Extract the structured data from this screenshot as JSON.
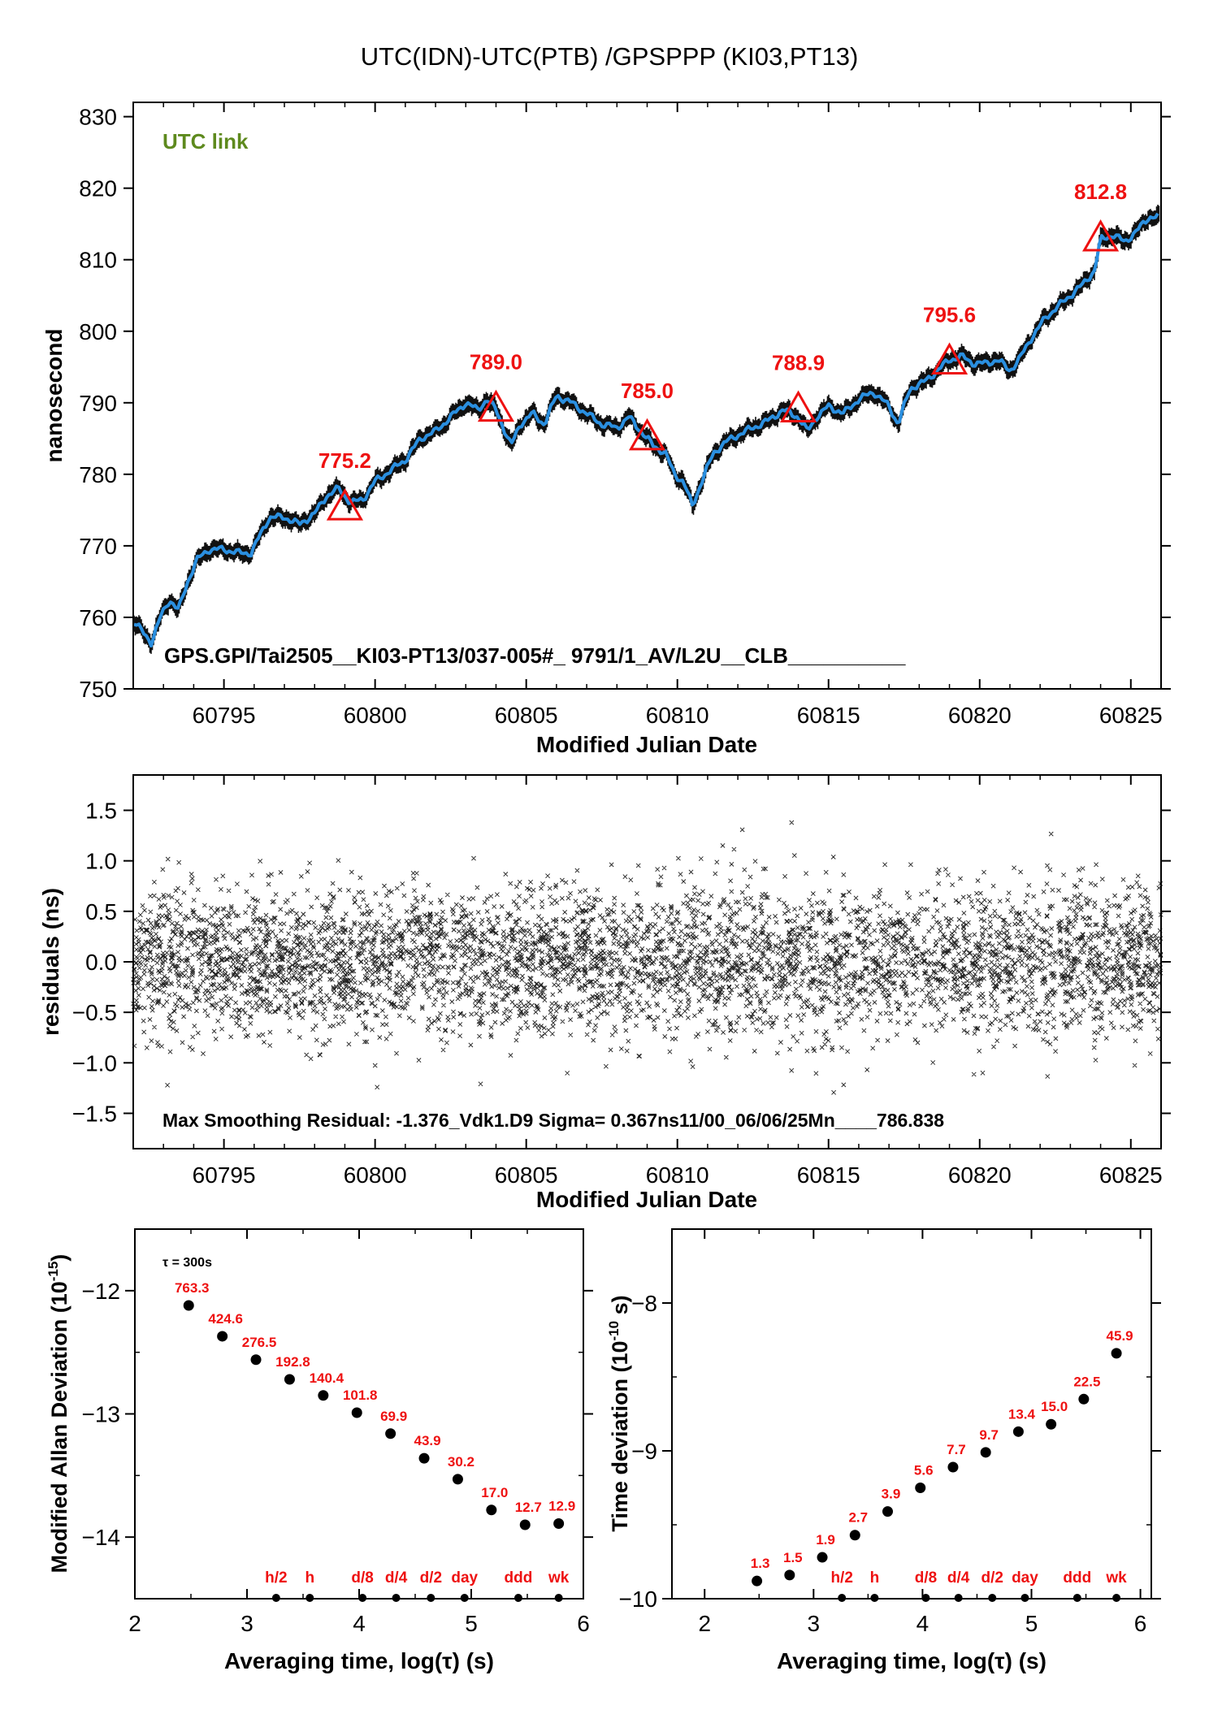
{
  "page": {
    "title": "UTC(IDN)-UTC(PTB)  /GPSPPP  (KI03,PT13)"
  },
  "colors": {
    "red": "#ee1111",
    "blue": "#2a8fe0",
    "green": "#5e8a1e",
    "black": "#000000"
  },
  "chart_data": [
    {
      "type": "line",
      "name": "time-series",
      "xlabel": "Modified Julian Date",
      "ylabel": "nanosecond",
      "xlim": [
        60792,
        60826
      ],
      "ylim": [
        750,
        832
      ],
      "xticks": [
        60795,
        60800,
        60805,
        60810,
        60815,
        60820,
        60825
      ],
      "yticks": [
        750,
        760,
        770,
        780,
        790,
        800,
        810,
        820,
        830
      ],
      "legend": "UTC link",
      "footer": "GPS.GPI/Tai2505__KI03-PT13/037-005#_  9791/1_AV/L2U__CLB__________",
      "curve": [
        [
          60792.0,
          759.5
        ],
        [
          60792.3,
          758.0
        ],
        [
          60792.6,
          756.5
        ],
        [
          60792.9,
          760.0
        ],
        [
          60793.2,
          762.5
        ],
        [
          60793.5,
          761.0
        ],
        [
          60793.8,
          765.0
        ],
        [
          60794.1,
          768.0
        ],
        [
          60794.5,
          769.5
        ],
        [
          60795.0,
          769.5
        ],
        [
          60795.5,
          769.0
        ],
        [
          60795.9,
          769.0
        ],
        [
          60796.2,
          771.5
        ],
        [
          60796.5,
          774.0
        ],
        [
          60797.0,
          774.0
        ],
        [
          60797.5,
          773.0
        ],
        [
          60798.0,
          774.5
        ],
        [
          60798.4,
          777.0
        ],
        [
          60798.8,
          778.0
        ],
        [
          60799.2,
          776.0
        ],
        [
          60799.6,
          776.5
        ],
        [
          60800.0,
          779.0
        ],
        [
          60800.5,
          780.5
        ],
        [
          60801.0,
          782.0
        ],
        [
          60801.5,
          785.0
        ],
        [
          60802.0,
          786.0
        ],
        [
          60802.5,
          788.0
        ],
        [
          60803.0,
          790.0
        ],
        [
          60803.4,
          789.0
        ],
        [
          60803.7,
          790.5
        ],
        [
          60804.0,
          789.0
        ],
        [
          60804.3,
          786.0
        ],
        [
          60804.5,
          784.0
        ],
        [
          60804.8,
          787.0
        ],
        [
          60805.2,
          788.5
        ],
        [
          60805.6,
          787.0
        ],
        [
          60806.0,
          791.0
        ],
        [
          60806.5,
          790.0
        ],
        [
          60807.0,
          788.5
        ],
        [
          60807.5,
          787.0
        ],
        [
          60808.0,
          786.5
        ],
        [
          60808.4,
          788.0
        ],
        [
          60808.8,
          786.0
        ],
        [
          60809.2,
          784.0
        ],
        [
          60809.6,
          783.0
        ],
        [
          60809.9,
          780.0
        ],
        [
          60810.2,
          779.0
        ],
        [
          60810.5,
          775.5
        ],
        [
          60810.8,
          779.0
        ],
        [
          60811.2,
          783.0
        ],
        [
          60811.6,
          784.5
        ],
        [
          60812.0,
          785.5
        ],
        [
          60812.5,
          786.5
        ],
        [
          60813.0,
          787.5
        ],
        [
          60813.5,
          789.0
        ],
        [
          60814.0,
          788.0
        ],
        [
          60814.3,
          786.0
        ],
        [
          60814.6,
          788.0
        ],
        [
          60815.0,
          789.5
        ],
        [
          60815.5,
          788.5
        ],
        [
          60816.0,
          790.5
        ],
        [
          60816.5,
          791.5
        ],
        [
          60817.0,
          789.5
        ],
        [
          60817.3,
          787.0
        ],
        [
          60817.7,
          792.0
        ],
        [
          60818.2,
          793.0
        ],
        [
          60818.6,
          794.5
        ],
        [
          60819.0,
          796.0
        ],
        [
          60819.4,
          796.5
        ],
        [
          60819.8,
          795.5
        ],
        [
          60820.2,
          795.5
        ],
        [
          60820.6,
          796.0
        ],
        [
          60821.0,
          794.5
        ],
        [
          60821.3,
          796.0
        ],
        [
          60821.7,
          799.0
        ],
        [
          60822.2,
          802.0
        ],
        [
          60822.6,
          803.5
        ],
        [
          60823.0,
          805.0
        ],
        [
          60823.4,
          806.5
        ],
        [
          60823.8,
          808.5
        ],
        [
          60824.0,
          812.8
        ],
        [
          60824.4,
          813.5
        ],
        [
          60824.8,
          812.5
        ],
        [
          60825.2,
          814.0
        ],
        [
          60825.6,
          816.0
        ],
        [
          60826.0,
          816.0
        ]
      ],
      "markers": [
        {
          "x": 60799.0,
          "y": 775.2,
          "label": "775.2"
        },
        {
          "x": 60804.0,
          "y": 789.0,
          "label": "789.0"
        },
        {
          "x": 60809.0,
          "y": 785.0,
          "label": "785.0"
        },
        {
          "x": 60814.0,
          "y": 788.9,
          "label": "788.9"
        },
        {
          "x": 60819.0,
          "y": 795.6,
          "label": "795.6"
        },
        {
          "x": 60824.0,
          "y": 812.8,
          "label": "812.8"
        }
      ]
    },
    {
      "type": "scatter",
      "name": "residuals",
      "xlabel": "Modified Julian Date",
      "ylabel": "residuals (ns)",
      "xlim": [
        60792,
        60826
      ],
      "ylim": [
        -1.85,
        1.85
      ],
      "xticks": [
        60795,
        60800,
        60805,
        60810,
        60815,
        60820,
        60825
      ],
      "yticks": [
        "1.5",
        "1.0",
        "0.5",
        "0.0",
        "−0.5",
        "−1.0",
        "−1.5"
      ],
      "yticks_values": [
        1.5,
        1.0,
        0.5,
        0.0,
        -0.5,
        -1.0,
        -1.5
      ],
      "sigma_ns": 0.367,
      "footer": "Max Smoothing Residual: -1.376_Vdk1.D9  Sigma= 0.367ns11/00_06/06/25Mn____786.838"
    },
    {
      "type": "scatter",
      "name": "modified-allan-deviation",
      "xlabel": "Averaging time, log(τ) (s)",
      "ylabel": "Modified Allan Deviation (10⁻¹⁵)",
      "ylabel_main": "Modified Allan Deviation (10",
      "ylabel_exp": "-15",
      "ylabel_end": ")",
      "xlim": [
        2,
        6
      ],
      "ylim": [
        -14.5,
        -11.5
      ],
      "xticks": [
        2,
        3,
        4,
        5,
        6
      ],
      "yticks": [
        -12,
        -13,
        -14
      ],
      "note": "τ = 300s",
      "points": [
        {
          "x": 2.48,
          "y": -12.12,
          "label": "763.3"
        },
        {
          "x": 2.78,
          "y": -12.37,
          "label": "424.6"
        },
        {
          "x": 3.08,
          "y": -12.56,
          "label": "276.5"
        },
        {
          "x": 3.38,
          "y": -12.72,
          "label": "192.8"
        },
        {
          "x": 3.68,
          "y": -12.85,
          "label": "140.4"
        },
        {
          "x": 3.98,
          "y": -12.99,
          "label": "101.8"
        },
        {
          "x": 4.28,
          "y": -13.16,
          "label": "69.9"
        },
        {
          "x": 4.58,
          "y": -13.36,
          "label": "43.9"
        },
        {
          "x": 4.88,
          "y": -13.53,
          "label": "30.2"
        },
        {
          "x": 5.18,
          "y": -13.78,
          "label": "17.0"
        },
        {
          "x": 5.48,
          "y": -13.9,
          "label": "12.7"
        },
        {
          "x": 5.78,
          "y": -13.89,
          "label": "12.9"
        }
      ],
      "ticks_marks": [
        {
          "x": 3.26,
          "label": "h/2"
        },
        {
          "x": 3.56,
          "label": "h"
        },
        {
          "x": 4.03,
          "label": "d/8"
        },
        {
          "x": 4.33,
          "label": "d/4"
        },
        {
          "x": 4.64,
          "label": "d/2"
        },
        {
          "x": 4.94,
          "label": "day"
        },
        {
          "x": 5.42,
          "label": "ddd"
        },
        {
          "x": 5.78,
          "label": "wk"
        }
      ]
    },
    {
      "type": "scatter",
      "name": "time-deviation",
      "xlabel": "Averaging time, log(τ) (s)",
      "ylabel": "Time deviation (10⁻¹⁰ s)",
      "ylabel_main": "Time deviation (10",
      "ylabel_exp": "-10",
      "ylabel_end": " s)",
      "xlim": [
        1.7,
        6.1
      ],
      "ylim": [
        -10,
        -7.5
      ],
      "xticks": [
        2,
        3,
        4,
        5,
        6
      ],
      "yticks": [
        -8,
        -9,
        -10
      ],
      "points": [
        {
          "x": 2.48,
          "y": -9.88,
          "label": "1.3"
        },
        {
          "x": 2.78,
          "y": -9.84,
          "label": "1.5"
        },
        {
          "x": 3.08,
          "y": -9.72,
          "label": "1.9"
        },
        {
          "x": 3.38,
          "y": -9.57,
          "label": "2.7"
        },
        {
          "x": 3.68,
          "y": -9.41,
          "label": "3.9"
        },
        {
          "x": 3.98,
          "y": -9.25,
          "label": "5.6"
        },
        {
          "x": 4.28,
          "y": -9.11,
          "label": "7.7"
        },
        {
          "x": 4.58,
          "y": -9.01,
          "label": "9.7"
        },
        {
          "x": 4.88,
          "y": -8.87,
          "label": "13.4"
        },
        {
          "x": 5.18,
          "y": -8.82,
          "label": "15.0"
        },
        {
          "x": 5.48,
          "y": -8.65,
          "label": "22.5"
        },
        {
          "x": 5.78,
          "y": -8.34,
          "label": "45.9"
        }
      ],
      "ticks_marks": [
        {
          "x": 3.26,
          "label": "h/2"
        },
        {
          "x": 3.56,
          "label": "h"
        },
        {
          "x": 4.03,
          "label": "d/8"
        },
        {
          "x": 4.33,
          "label": "d/4"
        },
        {
          "x": 4.64,
          "label": "d/2"
        },
        {
          "x": 4.94,
          "label": "day"
        },
        {
          "x": 5.42,
          "label": "ddd"
        },
        {
          "x": 5.78,
          "label": "wk"
        }
      ]
    }
  ]
}
